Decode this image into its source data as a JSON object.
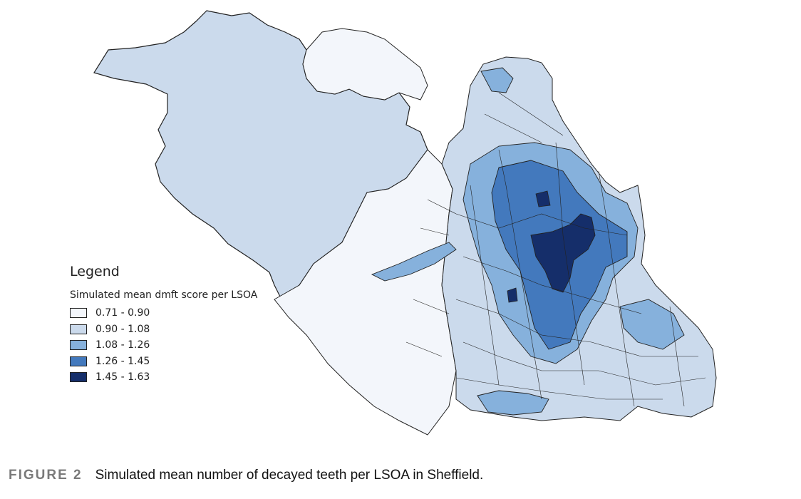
{
  "figure": {
    "number": "FIGURE 2",
    "caption": "Simulated mean number of decayed teeth per LSOA in Sheffield."
  },
  "legend": {
    "title": "Legend",
    "subtitle": "Simulated mean dmft score per LSOA",
    "classes": [
      {
        "label": "0.71 - 0.90",
        "color": "#f3f6fb"
      },
      {
        "label": "0.90 - 1.08",
        "color": "#cbdaec"
      },
      {
        "label": "1.08 - 1.26",
        "color": "#86b1dc"
      },
      {
        "label": "1.26 - 1.45",
        "color": "#4379bd"
      },
      {
        "label": "1.45 - 1.63",
        "color": "#152e6a"
      }
    ]
  }
}
